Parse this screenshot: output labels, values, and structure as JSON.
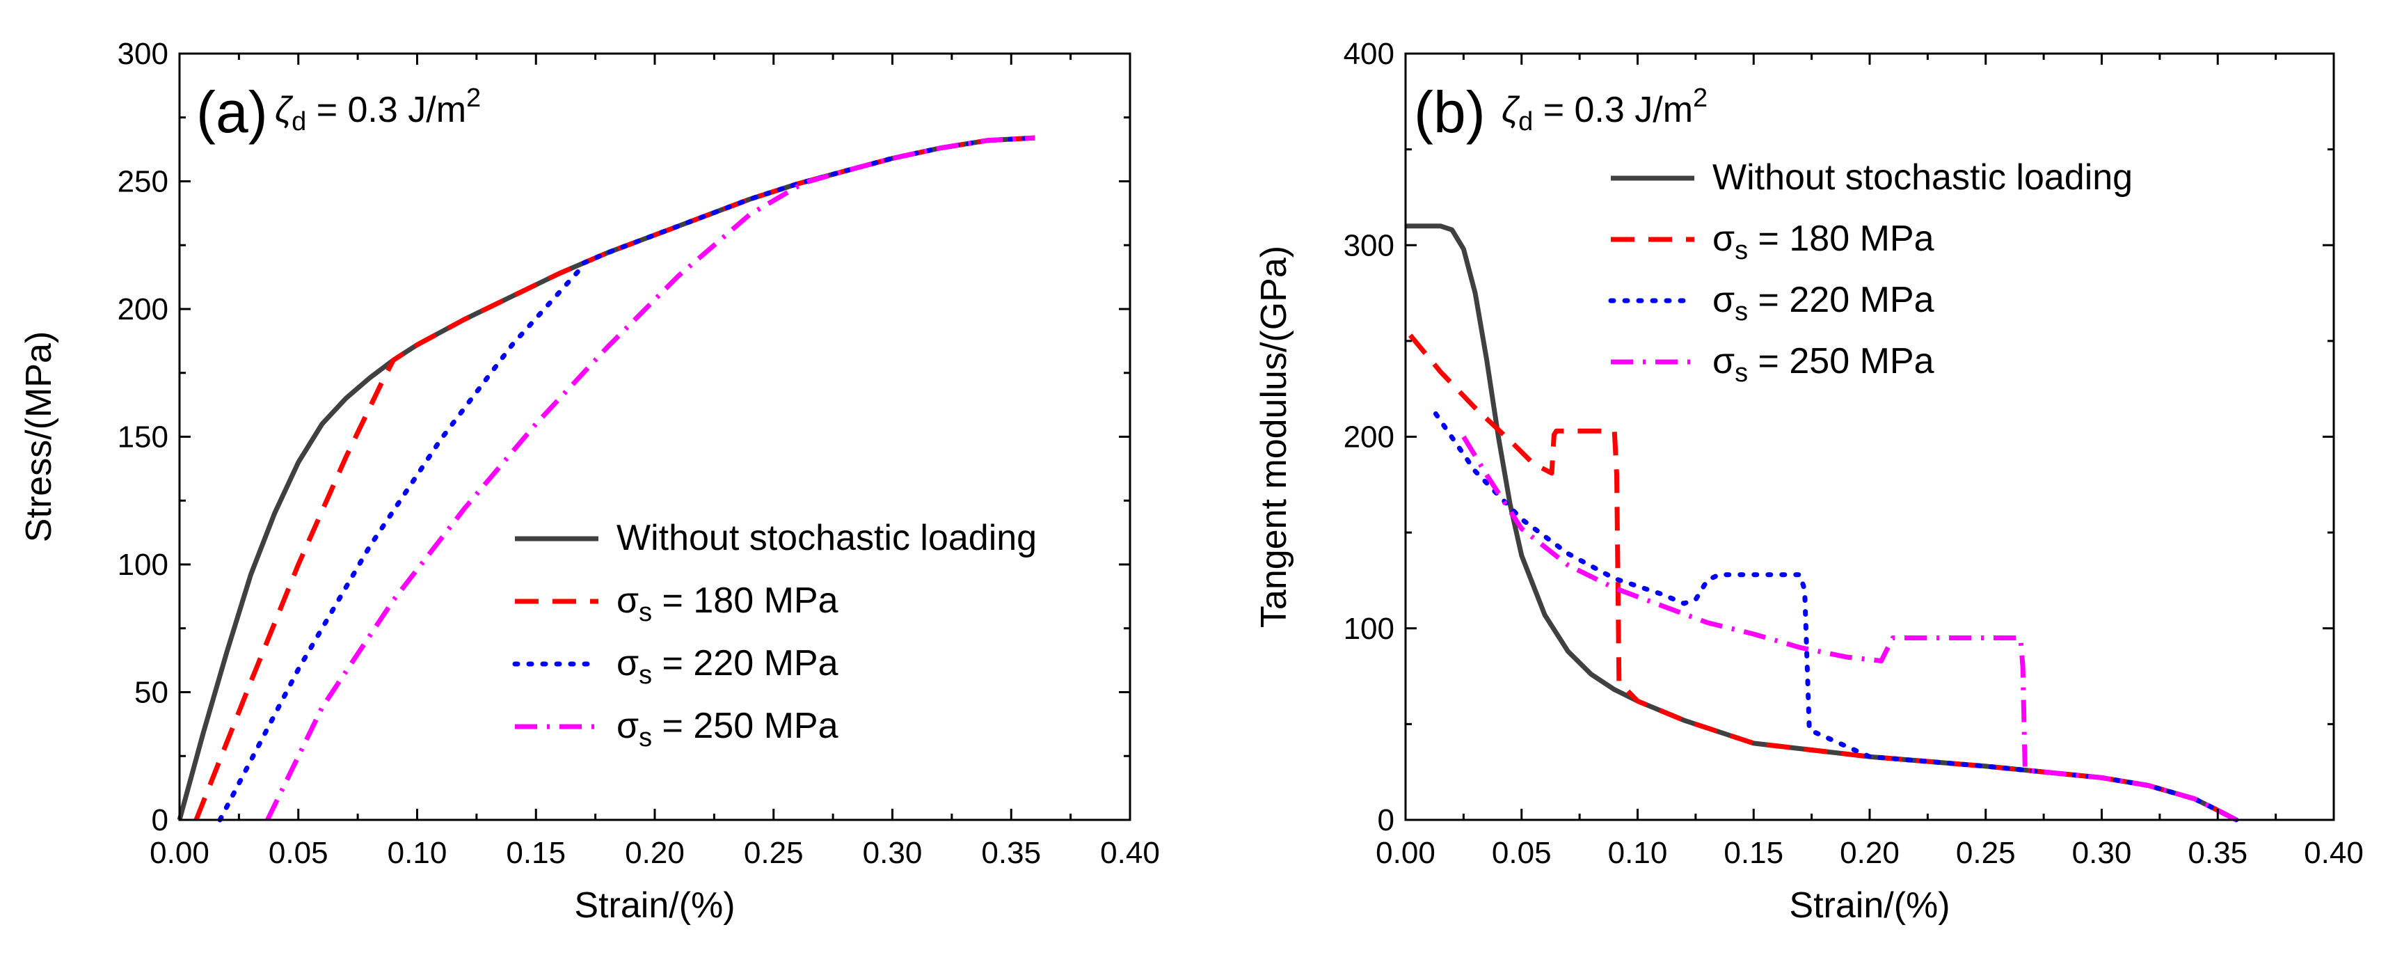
{
  "chart_data": [
    {
      "type": "line",
      "panel_label": "(a)",
      "annotation": {
        "symbol": "ζ",
        "subscript": "d",
        "text": " = 0.3 J/m",
        "superscript": "2"
      },
      "xlabel": "Strain/(%)",
      "ylabel": "Stress/(MPa)",
      "xlim": [
        0.0,
        0.4
      ],
      "ylim": [
        0,
        300
      ],
      "xticks": [
        "0.00",
        "0.05",
        "0.10",
        "0.15",
        "0.20",
        "0.25",
        "0.30",
        "0.35",
        "0.40"
      ],
      "yticks": [
        "0",
        "50",
        "100",
        "150",
        "200",
        "250",
        "300"
      ],
      "legend_position": "center-right",
      "series": [
        {
          "name": "Without stochastic loading",
          "legend_symbol": "",
          "legend_sub": "",
          "legend_rest": "Without stochastic loading",
          "color": "#404040",
          "style": "solid",
          "x": [
            0.0,
            0.01,
            0.02,
            0.03,
            0.04,
            0.05,
            0.06,
            0.07,
            0.08,
            0.09,
            0.1,
            0.12,
            0.14,
            0.16,
            0.18,
            0.2,
            0.22,
            0.24,
            0.26,
            0.28,
            0.3,
            0.32,
            0.34,
            0.36
          ],
          "y": [
            0,
            34,
            66,
            96,
            120,
            140,
            155,
            165,
            173,
            180,
            186,
            196,
            205,
            214,
            222,
            229,
            236,
            243,
            249,
            254,
            259,
            263,
            266,
            267
          ]
        },
        {
          "name": "σs = 180 MPa",
          "legend_symbol": "σ",
          "legend_sub": "s",
          "legend_rest": "  = 180 MPa",
          "color": "#ff0000",
          "style": "dash",
          "x": [
            0.007,
            0.03,
            0.05,
            0.07,
            0.085,
            0.09,
            0.1,
            0.12,
            0.14,
            0.16,
            0.18,
            0.2,
            0.22,
            0.24,
            0.26,
            0.28,
            0.3,
            0.32,
            0.34,
            0.36
          ],
          "y": [
            0,
            54,
            100,
            142,
            171,
            180,
            186,
            196,
            205,
            214,
            222,
            229,
            236,
            243,
            249,
            254,
            259,
            263,
            266,
            267
          ]
        },
        {
          "name": "σs = 220 MPa",
          "legend_symbol": "σ",
          "legend_sub": "s",
          "legend_rest": " = 220 MPa",
          "color": "#0000ff",
          "style": "dot",
          "x": [
            0.017,
            0.05,
            0.08,
            0.11,
            0.14,
            0.168,
            0.17,
            0.18,
            0.2,
            0.22,
            0.24,
            0.26,
            0.28,
            0.3,
            0.32,
            0.34,
            0.36
          ],
          "y": [
            0,
            59,
            107,
            149,
            186,
            215,
            218,
            222,
            229,
            236,
            243,
            249,
            254,
            259,
            263,
            266,
            267
          ]
        },
        {
          "name": "σs = 250 MPa",
          "legend_symbol": "σ",
          "legend_sub": "s",
          "legend_rest": " = 250 MPa",
          "color": "#ff00ff",
          "style": "dashdot",
          "x": [
            0.037,
            0.06,
            0.09,
            0.12,
            0.15,
            0.18,
            0.21,
            0.24,
            0.262,
            0.265,
            0.28,
            0.3,
            0.32,
            0.34,
            0.36
          ],
          "y": [
            0,
            44,
            86,
            122,
            155,
            185,
            213,
            237,
            249,
            250,
            254,
            259,
            263,
            266,
            267
          ]
        }
      ]
    },
    {
      "type": "line",
      "panel_label": "(b)",
      "annotation": {
        "symbol": "ζ",
        "subscript": "d",
        "text": " = 0.3 J/m",
        "superscript": "2"
      },
      "xlabel": "Strain/(%)",
      "ylabel": "Tangent modulus/(GPa)",
      "xlim": [
        0.0,
        0.4
      ],
      "ylim": [
        0,
        400
      ],
      "xticks": [
        "0.00",
        "0.05",
        "0.10",
        "0.15",
        "0.20",
        "0.25",
        "0.30",
        "0.35",
        "0.40"
      ],
      "yticks": [
        "0",
        "100",
        "200",
        "300",
        "400"
      ],
      "legend_position": "top-center",
      "series": [
        {
          "name": "Without stochastic loading",
          "legend_symbol": "",
          "legend_sub": "",
          "legend_rest": "Without stochastic loading",
          "color": "#404040",
          "style": "solid",
          "x": [
            0.0,
            0.015,
            0.02,
            0.025,
            0.03,
            0.035,
            0.04,
            0.045,
            0.05,
            0.06,
            0.07,
            0.08,
            0.09,
            0.1,
            0.12,
            0.15,
            0.2,
            0.25,
            0.3,
            0.32,
            0.34,
            0.35,
            0.358
          ],
          "y": [
            310,
            310,
            308,
            298,
            275,
            240,
            200,
            165,
            138,
            107,
            88,
            76,
            68,
            62,
            52,
            40,
            33,
            28,
            22,
            18,
            11,
            5,
            0
          ]
        },
        {
          "name": "σs = 180 MPa",
          "legend_symbol": "σ",
          "legend_sub": "s",
          "legend_rest": "  = 180 MPa",
          "color": "#ff0000",
          "style": "dash",
          "x": [
            0.002,
            0.015,
            0.03,
            0.045,
            0.055,
            0.063,
            0.064,
            0.065,
            0.09,
            0.091,
            0.092,
            0.1,
            0.12,
            0.15,
            0.2,
            0.25,
            0.3,
            0.32,
            0.34,
            0.35,
            0.358
          ],
          "y": [
            253,
            234,
            215,
            198,
            186,
            181,
            201,
            203,
            203,
            180,
            72,
            62,
            52,
            40,
            33,
            28,
            22,
            18,
            11,
            5,
            0
          ]
        },
        {
          "name": "σs = 220 MPa",
          "legend_symbol": "σ",
          "legend_sub": "s",
          "legend_rest": " = 220 MPa",
          "color": "#0000ff",
          "style": "dot",
          "x": [
            0.013,
            0.03,
            0.05,
            0.07,
            0.09,
            0.11,
            0.12,
            0.125,
            0.13,
            0.135,
            0.17,
            0.172,
            0.174,
            0.2,
            0.25,
            0.3,
            0.32,
            0.34,
            0.35,
            0.358
          ],
          "y": [
            212,
            182,
            157,
            139,
            126,
            118,
            113,
            115,
            125,
            128,
            128,
            120,
            47,
            33,
            28,
            22,
            18,
            11,
            5,
            0
          ]
        },
        {
          "name": "σs = 250 MPa",
          "legend_symbol": "σ",
          "legend_sub": "s",
          "legend_rest": " = 250 MPa",
          "color": "#ff00ff",
          "style": "dashdot",
          "x": [
            0.025,
            0.035,
            0.05,
            0.07,
            0.09,
            0.11,
            0.13,
            0.15,
            0.17,
            0.19,
            0.205,
            0.21,
            0.265,
            0.266,
            0.267,
            0.3,
            0.32,
            0.34,
            0.35,
            0.358
          ],
          "y": [
            200,
            180,
            152,
            133,
            121,
            112,
            103,
            97,
            90,
            85,
            83,
            95,
            95,
            80,
            26,
            22,
            18,
            11,
            5,
            0
          ]
        }
      ]
    }
  ]
}
